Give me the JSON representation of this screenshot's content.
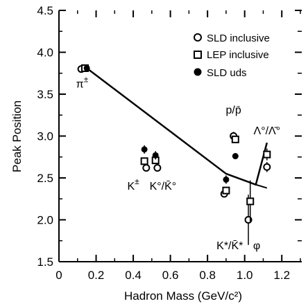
{
  "chart_data": {
    "type": "scatter",
    "xlabel": "Hadron Mass   (GeV/c²)",
    "ylabel": "Peak Position",
    "xlim": [
      0,
      1.3
    ],
    "ylim": [
      1.5,
      4.5
    ],
    "x_ticks": [
      "0",
      "0.2",
      "0.4",
      "0.6",
      "0.8",
      "1.0",
      "1.2"
    ],
    "x_tick_values": [
      0,
      0.2,
      0.4,
      0.6,
      0.8,
      1.0,
      1.2
    ],
    "y_ticks": [
      "1.5",
      "2.0",
      "2.5",
      "3.0",
      "3.5",
      "4.0",
      "4.5"
    ],
    "y_tick_values": [
      1.5,
      2.0,
      2.5,
      3.0,
      3.5,
      4.0,
      4.5
    ],
    "legend": {
      "position": "top-right"
    },
    "series": [
      {
        "name": "SLD inclusive",
        "marker": "open-circle",
        "points": [
          {
            "x": 0.12,
            "y": 3.8,
            "err": 0.02
          },
          {
            "x": 0.47,
            "y": 2.62,
            "err": 0.04
          },
          {
            "x": 0.53,
            "y": 2.62,
            "err": 0.04
          },
          {
            "x": 0.89,
            "y": 2.31,
            "err": 0.03
          },
          {
            "x": 0.94,
            "y": 3.0,
            "err": 0.05
          },
          {
            "x": 1.02,
            "y": 2.0,
            "err": 0.3
          },
          {
            "x": 1.12,
            "y": 2.63,
            "err": 0.06
          }
        ]
      },
      {
        "name": "LEP inclusive",
        "marker": "open-square",
        "points": [
          {
            "x": 0.14,
            "y": 3.81,
            "err": 0.01
          },
          {
            "x": 0.46,
            "y": 2.7,
            "err": 0.04
          },
          {
            "x": 0.52,
            "y": 2.71,
            "err": 0.04
          },
          {
            "x": 0.9,
            "y": 2.35,
            "err": 0.03
          },
          {
            "x": 0.95,
            "y": 2.96,
            "err": 0.04
          },
          {
            "x": 1.03,
            "y": 2.22,
            "err": 0.25
          },
          {
            "x": 1.12,
            "y": 2.78,
            "err": 0.07
          }
        ]
      },
      {
        "name": "SLD uds",
        "marker": "filled-circle",
        "points": [
          {
            "x": 0.15,
            "y": 3.81,
            "err": 0.01
          },
          {
            "x": 0.46,
            "y": 2.84,
            "err": 0.05
          },
          {
            "x": 0.52,
            "y": 2.77,
            "err": 0.05
          },
          {
            "x": 0.9,
            "y": 2.48,
            "err": 0.05
          },
          {
            "x": 0.95,
            "y": 2.76,
            "err": 0.03
          }
        ]
      }
    ],
    "annotations": [
      {
        "text": "π",
        "sup": "±",
        "x": 0.125,
        "y": 3.58
      },
      {
        "text": "K",
        "sup": "±",
        "x": 0.4,
        "y": 2.36
      },
      {
        "text": "K°/K̄°",
        "sup": "",
        "x": 0.56,
        "y": 2.36
      },
      {
        "text": "p/p̄",
        "sup": "",
        "x": 0.94,
        "y": 3.27
      },
      {
        "text": "Λ°/Λ̄°",
        "sup": "",
        "x": 1.12,
        "y": 3.02
      },
      {
        "text": "K*/K̄*",
        "sup": "",
        "x": 0.92,
        "y": 1.65
      },
      {
        "text": "φ",
        "sup": "",
        "x": 1.065,
        "y": 1.65
      }
    ],
    "fit_line": {
      "points": [
        {
          "x": 0.15,
          "y": 3.81
        },
        {
          "x": 0.9,
          "y": 2.55
        },
        {
          "x": 1.06,
          "y": 2.42
        },
        {
          "x": 1.12,
          "y": 2.92
        }
      ],
      "extra_segment": [
        {
          "x": 1.06,
          "y": 2.42
        },
        {
          "x": 1.12,
          "y": 2.38
        }
      ]
    }
  }
}
